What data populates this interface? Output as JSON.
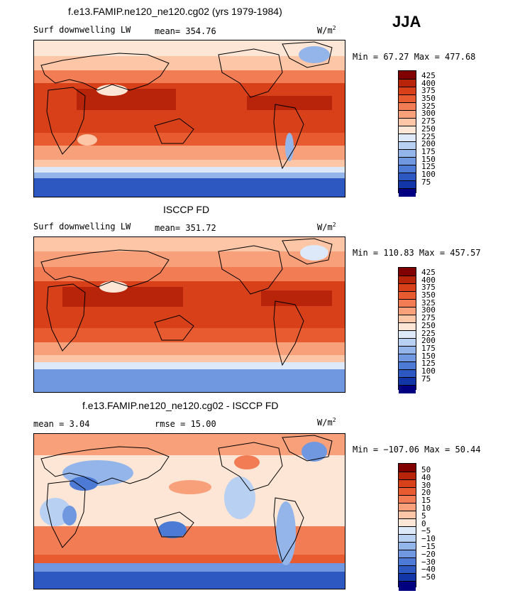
{
  "season": "JJA",
  "panels": [
    {
      "title": "f.e13.FAMIP.ne120_ne120.cg02 (yrs 1979-1984)",
      "left_label": "Surf downwelling LW",
      "center_label": "mean= 354.76",
      "units": "W/m",
      "units_sup": "2",
      "minmax": "Min =  67.27 Max = 477.68",
      "levels": [
        "425",
        "400",
        "375",
        "350",
        "325",
        "300",
        "275",
        "250",
        "225",
        "200",
        "175",
        "150",
        "125",
        "100",
        "75"
      ]
    },
    {
      "title": "ISCCP FD",
      "left_label": "Surf downwelling LW",
      "center_label": "mean= 351.72",
      "units": "W/m",
      "units_sup": "2",
      "minmax": "Min = 110.83 Max = 457.57",
      "levels": [
        "425",
        "400",
        "375",
        "350",
        "325",
        "300",
        "275",
        "250",
        "225",
        "200",
        "175",
        "150",
        "125",
        "100",
        "75"
      ]
    },
    {
      "title": "f.e13.FAMIP.ne120_ne120.cg02 - ISCCP FD",
      "left_label": "mean =   3.04",
      "center_label": "rmse =  15.00",
      "units": "W/m",
      "units_sup": "2",
      "minmax": "Min = −107.06 Max =  50.44",
      "levels": [
        "50",
        "40",
        "30",
        "20",
        "15",
        "10",
        "5",
        "0",
        "−5",
        "−10",
        "−15",
        "−20",
        "−30",
        "−40",
        "−50"
      ]
    }
  ],
  "colors": {
    "scale16": [
      "#800000",
      "#b8240a",
      "#d8401a",
      "#e85a30",
      "#f27d55",
      "#f8a07a",
      "#fdc6a6",
      "#fde6d6",
      "#dde9f8",
      "#b8d0f2",
      "#93b5ea",
      "#6f98e0",
      "#4d7ad4",
      "#2d58c2",
      "#1236a8",
      "#000080"
    ]
  }
}
